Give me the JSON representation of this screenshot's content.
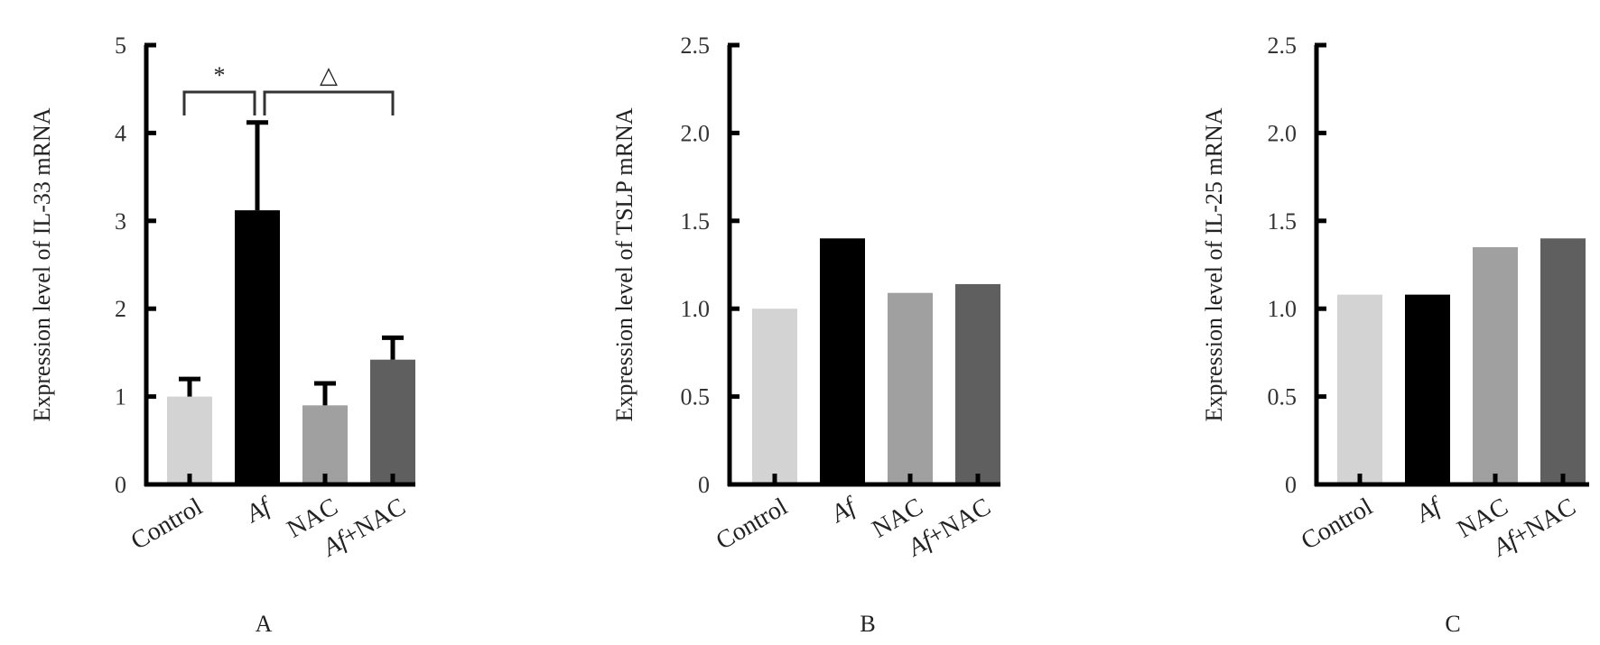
{
  "chart_data": [
    {
      "type": "bar",
      "panel_label": "A",
      "ylabel": "Expression level of IL-33 mRNA",
      "ylim": [
        0,
        5
      ],
      "yticks": [
        "0",
        "1",
        "2",
        "3",
        "4",
        "5"
      ],
      "categories": [
        {
          "label": "Control",
          "italic_prefix": ""
        },
        {
          "label": "",
          "italic_prefix": "Af"
        },
        {
          "label": "NAC",
          "italic_prefix": ""
        },
        {
          "label": "+NAC",
          "italic_prefix": "Af"
        }
      ],
      "values": [
        1.0,
        3.12,
        0.9,
        1.42
      ],
      "errors": [
        0.2,
        1.0,
        0.25,
        0.25
      ],
      "colors": [
        "#d3d3d3",
        "#000000",
        "#a0a0a0",
        "#5f5f5f"
      ],
      "annotations": [
        {
          "text": "*",
          "from": 0,
          "to": 1
        },
        {
          "text": "△",
          "from": 1,
          "to": 3
        }
      ]
    },
    {
      "type": "bar",
      "panel_label": "B",
      "ylabel": "Expression level of TSLP mRNA",
      "ylim": [
        0,
        2.5
      ],
      "yticks": [
        "0",
        "0.5",
        "1.0",
        "1.5",
        "2.0",
        "2.5"
      ],
      "categories": [
        {
          "label": "Control",
          "italic_prefix": ""
        },
        {
          "label": "",
          "italic_prefix": "Af"
        },
        {
          "label": "NAC",
          "italic_prefix": ""
        },
        {
          "label": "+NAC",
          "italic_prefix": "Af"
        }
      ],
      "values": [
        1.0,
        1.4,
        1.09,
        1.14
      ],
      "errors": [],
      "colors": [
        "#d3d3d3",
        "#000000",
        "#a0a0a0",
        "#5f5f5f"
      ],
      "annotations": []
    },
    {
      "type": "bar",
      "panel_label": "C",
      "ylabel": "Expression level of IL-25 mRNA",
      "ylim": [
        0,
        2.5
      ],
      "yticks": [
        "0",
        "0.5",
        "1.0",
        "1.5",
        "2.0",
        "2.5"
      ],
      "categories": [
        {
          "label": "Control",
          "italic_prefix": ""
        },
        {
          "label": "",
          "italic_prefix": "Af"
        },
        {
          "label": "NAC",
          "italic_prefix": ""
        },
        {
          "label": "+NAC",
          "italic_prefix": "Af"
        }
      ],
      "values": [
        1.08,
        1.08,
        1.35,
        1.4
      ],
      "errors": [],
      "colors": [
        "#d3d3d3",
        "#000000",
        "#a0a0a0",
        "#5f5f5f"
      ],
      "annotations": []
    }
  ]
}
